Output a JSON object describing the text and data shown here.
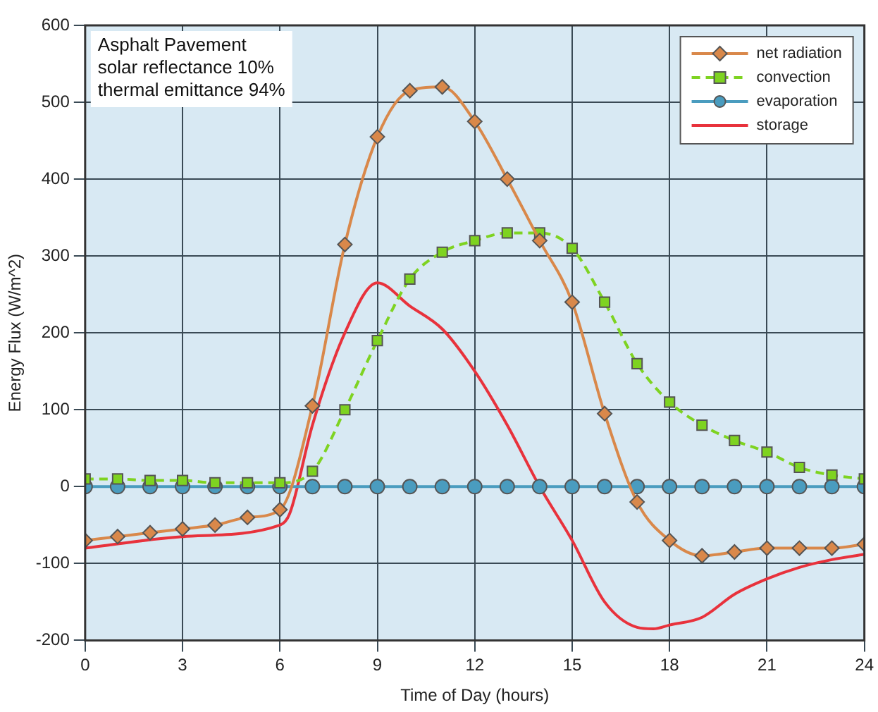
{
  "chart_data": {
    "type": "line",
    "xlabel": "Time of Day (hours)",
    "ylabel": "Energy Flux (W/m^2)",
    "annotations": [
      "Asphalt Pavement",
      "solar reflectance 10%",
      "thermal emittance 94%"
    ],
    "xlim": [
      0,
      24
    ],
    "xticks": [
      0,
      3,
      6,
      9,
      12,
      15,
      18,
      21,
      24
    ],
    "ylim": [
      -200,
      600
    ],
    "yticks": [
      -200,
      -100,
      0,
      100,
      200,
      300,
      400,
      500,
      600
    ],
    "grid": true,
    "legend": "top right",
    "series": [
      {
        "name": "net radiation",
        "color": "#d9884a",
        "marker": "diamond",
        "line_style": "solid",
        "x": [
          0,
          1,
          2,
          3,
          4,
          5,
          6,
          7,
          8,
          9,
          10,
          11,
          12,
          13,
          14,
          15,
          16,
          17,
          18,
          19,
          20,
          21,
          22,
          23,
          24
        ],
        "values": [
          -70,
          -65,
          -60,
          -55,
          -50,
          -40,
          -30,
          105,
          315,
          455,
          515,
          520,
          475,
          400,
          320,
          240,
          95,
          -20,
          -70,
          -90,
          -85,
          -80,
          -80,
          -80,
          -75
        ]
      },
      {
        "name": "convection",
        "color": "#7ed321",
        "marker": "square",
        "line_style": "dashed",
        "x": [
          0,
          1,
          2,
          3,
          4,
          5,
          6,
          7,
          8,
          9,
          10,
          11,
          12,
          13,
          14,
          15,
          16,
          17,
          18,
          19,
          20,
          21,
          22,
          23,
          24
        ],
        "values": [
          10,
          10,
          8,
          8,
          5,
          5,
          5,
          20,
          100,
          190,
          270,
          305,
          320,
          330,
          330,
          310,
          240,
          160,
          110,
          80,
          60,
          45,
          25,
          15,
          10
        ]
      },
      {
        "name": "evaporation",
        "color": "#4a9cbf",
        "marker": "circle",
        "line_style": "solid",
        "x": [
          0,
          1,
          2,
          3,
          4,
          5,
          6,
          7,
          8,
          9,
          10,
          11,
          12,
          13,
          14,
          15,
          16,
          17,
          18,
          19,
          20,
          21,
          22,
          23,
          24
        ],
        "values": [
          0,
          0,
          0,
          0,
          0,
          0,
          0,
          0,
          0,
          0,
          0,
          0,
          0,
          0,
          0,
          0,
          0,
          0,
          0,
          0,
          0,
          0,
          0,
          0,
          0
        ]
      },
      {
        "name": "storage",
        "color": "#e8323c",
        "marker": "none",
        "line_style": "solid",
        "x": [
          0,
          3,
          6,
          6.3,
          7,
          8,
          9,
          10,
          11,
          12,
          13,
          14,
          15,
          16,
          17,
          17.5,
          18,
          19,
          20,
          21,
          22,
          23,
          24
        ],
        "values": [
          -80,
          -65,
          -50,
          -35,
          80,
          200,
          265,
          235,
          205,
          150,
          80,
          0,
          -70,
          -150,
          -183,
          -185,
          -180,
          -170,
          -140,
          -120,
          -105,
          -95,
          -88
        ]
      }
    ]
  }
}
